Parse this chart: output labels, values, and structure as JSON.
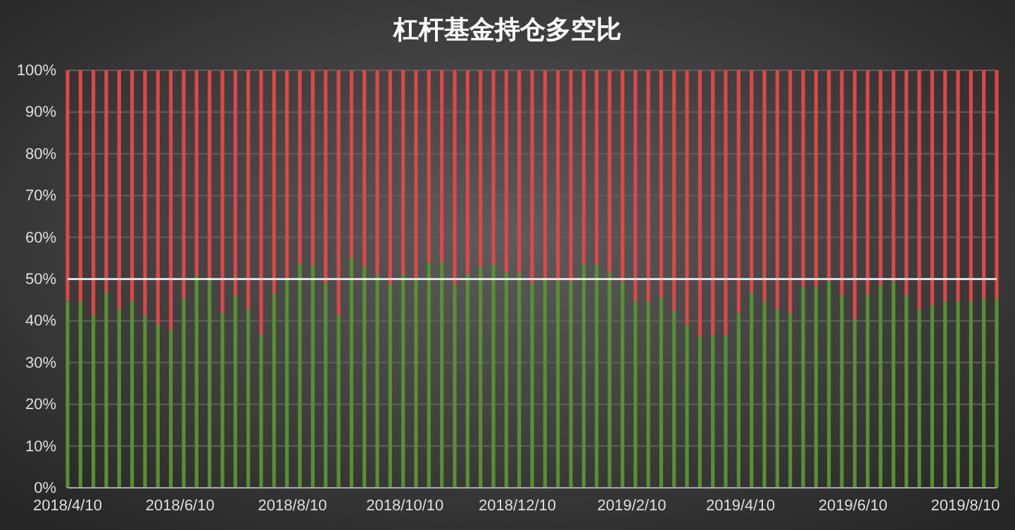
{
  "chart_data": {
    "type": "bar",
    "title": "杠杆基金持仓多空比",
    "stacked": true,
    "x": [
      "2018-04-10",
      "2018-04-17",
      "2018-04-24",
      "2018-05-01",
      "2018-05-08",
      "2018-05-15",
      "2018-05-22",
      "2018-05-29",
      "2018-06-05",
      "2018-06-12",
      "2018-06-19",
      "2018-06-26",
      "2018-07-03",
      "2018-07-10",
      "2018-07-17",
      "2018-07-24",
      "2018-07-31",
      "2018-08-07",
      "2018-08-14",
      "2018-08-21",
      "2018-08-28",
      "2018-09-04",
      "2018-09-11",
      "2018-09-18",
      "2018-09-25",
      "2018-10-02",
      "2018-10-09",
      "2018-10-16",
      "2018-10-23",
      "2018-10-30",
      "2018-11-06",
      "2018-11-13",
      "2018-11-20",
      "2018-11-27",
      "2018-12-04",
      "2018-12-11",
      "2018-12-18",
      "2018-12-25",
      "2019-01-01",
      "2019-01-08",
      "2019-01-15",
      "2019-01-22",
      "2019-01-29",
      "2019-02-05",
      "2019-02-12",
      "2019-02-19",
      "2019-02-26",
      "2019-03-05",
      "2019-03-12",
      "2019-03-19",
      "2019-03-26",
      "2019-04-02",
      "2019-04-09",
      "2019-04-16",
      "2019-04-23",
      "2019-04-30",
      "2019-05-07",
      "2019-05-14",
      "2019-05-21",
      "2019-05-28",
      "2019-06-04",
      "2019-06-11",
      "2019-06-18",
      "2019-06-25",
      "2019-07-02",
      "2019-07-09",
      "2019-07-16",
      "2019-07-23",
      "2019-07-30",
      "2019-08-06",
      "2019-08-13",
      "2019-08-20",
      "2019-08-27"
    ],
    "series": [
      {
        "color": "#5a8f2f",
        "values": [
          44.7,
          44.5,
          41.3,
          46.8,
          42.8,
          44.5,
          41.1,
          39.1,
          37.7,
          45.2,
          50.8,
          50.1,
          42.0,
          45.9,
          42.8,
          36.6,
          46.5,
          50.1,
          53.6,
          53.3,
          48.9,
          41.3,
          54.9,
          53.0,
          51.0,
          48.7,
          51.0,
          49.8,
          54.0,
          54.0,
          48.7,
          51.0,
          52.7,
          53.5,
          51.5,
          51.5,
          48.9,
          49.8,
          49.6,
          49.3,
          53.5,
          53.5,
          51.5,
          49.3,
          44.5,
          44.5,
          45.5,
          42.5,
          39.1,
          36.2,
          36.5,
          36.5,
          41.7,
          46.7,
          44.6,
          42.7,
          41.7,
          48.1,
          48.1,
          49.3,
          46.1,
          40.4,
          46.4,
          48.5,
          49.3,
          46.1,
          42.7,
          43.7,
          44.5,
          44.6,
          44.5,
          45.2,
          45.2
        ]
      },
      {
        "color": "#e04646",
        "values": [
          55.3,
          55.5,
          58.7,
          53.2,
          57.2,
          55.5,
          58.9,
          60.9,
          62.3,
          54.8,
          49.2,
          49.9,
          58.0,
          54.1,
          57.2,
          63.4,
          53.5,
          49.9,
          46.4,
          46.7,
          51.1,
          58.7,
          45.1,
          47.0,
          49.0,
          51.3,
          49.0,
          50.2,
          46.0,
          46.0,
          51.3,
          49.0,
          47.3,
          46.5,
          48.5,
          48.5,
          51.1,
          50.2,
          50.4,
          50.7,
          46.5,
          46.5,
          48.5,
          50.7,
          55.5,
          55.5,
          54.5,
          57.5,
          60.9,
          63.8,
          63.5,
          63.5,
          58.3,
          53.3,
          55.4,
          57.3,
          58.3,
          51.9,
          51.9,
          50.7,
          53.9,
          59.6,
          53.6,
          51.5,
          50.7,
          53.9,
          57.3,
          56.3,
          55.5,
          55.4,
          55.5,
          54.8,
          54.8
        ]
      }
    ],
    "xlim": [
      "2018-04-10",
      "2019-08-27"
    ],
    "xticks": [
      {
        "value": "2018-04-10",
        "label": "2018/4/10"
      },
      {
        "value": "2018-06-10",
        "label": "2018/6/10"
      },
      {
        "value": "2018-08-10",
        "label": "2018/8/10"
      },
      {
        "value": "2018-10-10",
        "label": "2018/10/10"
      },
      {
        "value": "2018-12-10",
        "label": "2018/12/10"
      },
      {
        "value": "2019-02-10",
        "label": "2019/2/10"
      },
      {
        "value": "2019-04-10",
        "label": "2019/4/10"
      },
      {
        "value": "2019-06-10",
        "label": "2019/6/10"
      },
      {
        "value": "2019-08-10",
        "label": "2019/8/10"
      }
    ],
    "ylim": [
      0,
      100
    ],
    "yticks": [
      {
        "value": 0,
        "label": "0%"
      },
      {
        "value": 10,
        "label": "10%"
      },
      {
        "value": 20,
        "label": "20%"
      },
      {
        "value": 30,
        "label": "30%"
      },
      {
        "value": 40,
        "label": "40%"
      },
      {
        "value": 50,
        "label": "50%"
      },
      {
        "value": 60,
        "label": "60%"
      },
      {
        "value": 70,
        "label": "70%"
      },
      {
        "value": 80,
        "label": "80%"
      },
      {
        "value": 90,
        "label": "90%"
      },
      {
        "value": 100,
        "label": "100%"
      }
    ],
    "grid": "y",
    "ref_lines": [
      {
        "axis": "y",
        "value": 50,
        "color": "#ffffff"
      }
    ]
  }
}
